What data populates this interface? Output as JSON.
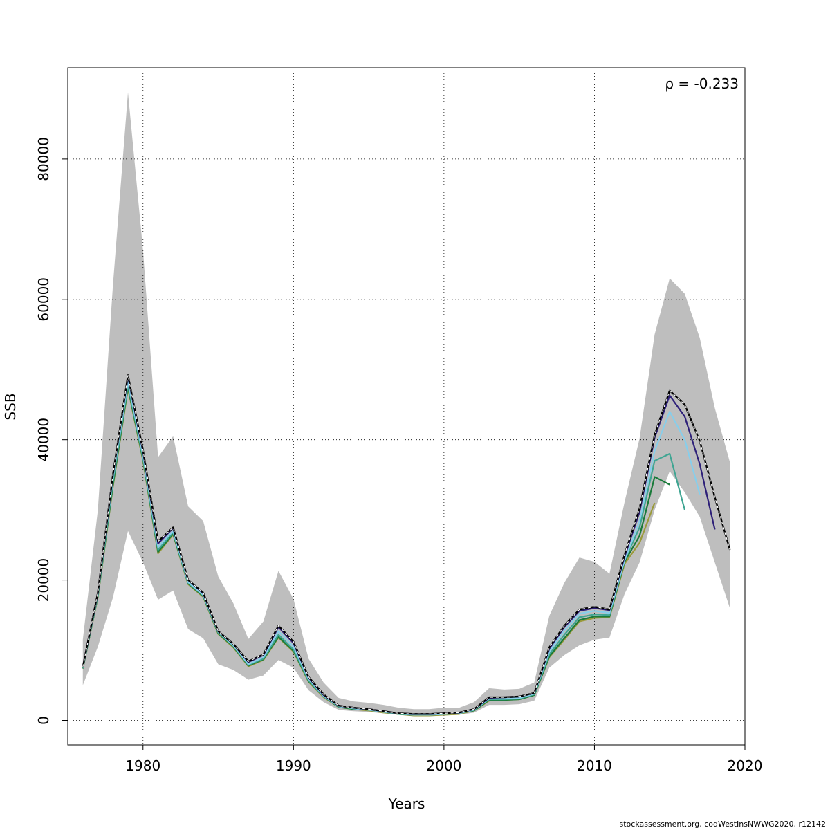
{
  "chart_data": {
    "type": "line",
    "xlabel": "Years",
    "ylabel": "SSB",
    "xlim": [
      1975,
      2020
    ],
    "ylim": [
      -3500,
      93000
    ],
    "xticks": [
      1980,
      1990,
      2000,
      2010,
      2020
    ],
    "yticks": [
      0,
      20000,
      40000,
      60000,
      80000
    ],
    "grid": true,
    "annotation": "ρ = -0.233",
    "confidence_band": {
      "x": [
        1976,
        1977,
        1978,
        1979,
        1980,
        1981,
        1982,
        1983,
        1984,
        1985,
        1986,
        1987,
        1988,
        1989,
        1990,
        1991,
        1992,
        1993,
        1994,
        1995,
        1996,
        1997,
        1998,
        1999,
        2000,
        2001,
        2002,
        2003,
        2004,
        2005,
        2006,
        2007,
        2008,
        2009,
        2010,
        2011,
        2012,
        2013,
        2014,
        2015,
        2016,
        2017,
        2018,
        2019
      ],
      "lower": [
        5000,
        10500,
        17500,
        27000,
        22500,
        17200,
        18500,
        13000,
        11700,
        8000,
        7200,
        5800,
        6400,
        8600,
        7500,
        4300,
        2600,
        1500,
        1300,
        1200,
        1000,
        800,
        600,
        600,
        700,
        800,
        1100,
        2200,
        2200,
        2300,
        2800,
        7500,
        9300,
        10700,
        11500,
        11800,
        18000,
        22500,
        30000,
        35500,
        32500,
        29000,
        22500,
        16000
      ],
      "upper": [
        11500,
        30000,
        62000,
        89500,
        67000,
        37500,
        40500,
        30500,
        28400,
        20500,
        16700,
        11600,
        14100,
        21300,
        17300,
        8800,
        5400,
        3200,
        2700,
        2500,
        2200,
        1800,
        1600,
        1600,
        1800,
        1800,
        2600,
        4600,
        4400,
        4500,
        5400,
        14900,
        19600,
        23200,
        22600,
        20900,
        31100,
        40200,
        55000,
        63000,
        60800,
        54500,
        44500,
        36800
      ]
    },
    "series": [
      {
        "x": [
          1976,
          1977,
          1978,
          1979,
          1980,
          1981,
          1982,
          1983,
          1984,
          1985,
          1986,
          1987,
          1988,
          1989,
          1990,
          1991,
          1992,
          1993,
          1994,
          1995,
          1996,
          1997,
          1998,
          1999,
          2000,
          2001,
          2002,
          2003,
          2004,
          2005,
          2006,
          2007,
          2008,
          2009,
          2010,
          2011,
          2012,
          2013,
          2014,
          2015,
          2016,
          2017,
          2018,
          2019
        ],
        "values": [
          7600,
          18200,
          35000,
          49200,
          38500,
          25500,
          27500,
          20000,
          18200,
          12700,
          10900,
          8400,
          9400,
          13500,
          11200,
          6200,
          3700,
          2100,
          1800,
          1600,
          1300,
          1000,
          900,
          900,
          1000,
          1100,
          1600,
          3300,
          3300,
          3400,
          3900,
          10400,
          13500,
          15800,
          16200,
          15800,
          23600,
          30200,
          40700,
          47000,
          45000,
          39800,
          31800,
          24300
        ],
        "color": "#000000",
        "dash": true
      },
      {
        "x": [
          1976,
          1977,
          1978,
          1979,
          1980,
          1981,
          1982,
          1983,
          1984,
          1985,
          1986,
          1987,
          1988,
          1989,
          1990,
          1991,
          1992,
          1993,
          1994,
          1995,
          1996,
          1997,
          1998,
          1999,
          2000,
          2001,
          2002,
          2003,
          2004,
          2005,
          2006,
          2007,
          2008,
          2009,
          2010,
          2011,
          2012,
          2013,
          2014,
          2015,
          2016,
          2017,
          2018
        ],
        "values": [
          7600,
          18200,
          35000,
          49000,
          38300,
          25200,
          27400,
          20000,
          18100,
          12700,
          10900,
          8300,
          9300,
          13300,
          11000,
          6100,
          3600,
          2100,
          1800,
          1600,
          1300,
          1000,
          900,
          900,
          1000,
          1100,
          1600,
          3200,
          3300,
          3400,
          3900,
          10200,
          13300,
          15600,
          16000,
          15700,
          23300,
          29700,
          40300,
          46300,
          43300,
          36500,
          27200
        ],
        "color": "#2d1f78"
      },
      {
        "x": [
          1976,
          1977,
          1978,
          1979,
          1980,
          1981,
          1982,
          1983,
          1984,
          1985,
          1986,
          1987,
          1988,
          1989,
          1990,
          1991,
          1992,
          1993,
          1994,
          1995,
          1996,
          1997,
          1998,
          1999,
          2000,
          2001,
          2002,
          2003,
          2004,
          2005,
          2006,
          2007,
          2008,
          2009,
          2010,
          2011,
          2012,
          2013,
          2014,
          2015,
          2016,
          2017
        ],
        "values": [
          7500,
          18000,
          34500,
          48300,
          37800,
          24700,
          27000,
          19700,
          17900,
          12600,
          10700,
          8000,
          9000,
          12700,
          10500,
          5900,
          3500,
          2000,
          1700,
          1500,
          1200,
          1000,
          800,
          800,
          900,
          1000,
          1500,
          3100,
          3100,
          3200,
          3800,
          9800,
          12800,
          15200,
          15600,
          15300,
          22800,
          28400,
          38400,
          44000,
          40000,
          32200
        ],
        "color": "#87ceeb"
      },
      {
        "x": [
          1976,
          1977,
          1978,
          1979,
          1980,
          1981,
          1982,
          1983,
          1984,
          1985,
          1986,
          1987,
          1988,
          1989,
          1990,
          1991,
          1992,
          1993,
          1994,
          1995,
          1996,
          1997,
          1998,
          1999,
          2000,
          2001,
          2002,
          2003,
          2004,
          2005,
          2006,
          2007,
          2008,
          2009,
          2010,
          2011,
          2012,
          2013,
          2014,
          2015,
          2016
        ],
        "values": [
          7500,
          17800,
          34000,
          47800,
          37400,
          24300,
          26800,
          19600,
          17800,
          12500,
          10600,
          7900,
          8800,
          12200,
          10100,
          5700,
          3400,
          2000,
          1700,
          1500,
          1200,
          900,
          800,
          800,
          900,
          1000,
          1500,
          3000,
          3000,
          3100,
          3700,
          9400,
          12200,
          14700,
          15100,
          15000,
          22800,
          27500,
          37000,
          38000,
          30000
        ],
        "color": "#3fa592"
      },
      {
        "x": [
          1976,
          1977,
          1978,
          1979,
          1980,
          1981,
          1982,
          1983,
          1984,
          1985,
          1986,
          1987,
          1988,
          1989,
          1990,
          1991,
          1992,
          1993,
          1994,
          1995,
          1996,
          1997,
          1998,
          1999,
          2000,
          2001,
          2002,
          2003,
          2004,
          2005,
          2006,
          2007,
          2008,
          2009,
          2010,
          2011,
          2012,
          2013,
          2014,
          2015
        ],
        "values": [
          7400,
          17700,
          33500,
          47500,
          37200,
          24000,
          26600,
          19500,
          17700,
          12400,
          10500,
          7800,
          8700,
          11900,
          9900,
          5600,
          3400,
          1900,
          1600,
          1500,
          1200,
          900,
          800,
          800,
          900,
          1000,
          1400,
          2900,
          2900,
          3000,
          3600,
          9100,
          11700,
          14300,
          14800,
          14800,
          22600,
          26300,
          34700,
          33600
        ],
        "color": "#1a7a3a"
      },
      {
        "x": [
          1976,
          1977,
          1978,
          1979,
          1980,
          1981,
          1982,
          1983,
          1984,
          1985,
          1986,
          1987,
          1988,
          1989,
          1990,
          1991,
          1992,
          1993,
          1994,
          1995,
          1996,
          1997,
          1998,
          1999,
          2000,
          2001,
          2002,
          2003,
          2004,
          2005,
          2006,
          2007,
          2008,
          2009,
          2010,
          2011,
          2012,
          2013,
          2014
        ],
        "values": [
          7400,
          17600,
          33300,
          47300,
          37000,
          23800,
          26500,
          19400,
          17600,
          12300,
          10400,
          7700,
          8600,
          11800,
          9800,
          5500,
          3300,
          1900,
          1600,
          1400,
          1100,
          900,
          700,
          700,
          800,
          900,
          1400,
          2800,
          2900,
          3000,
          3600,
          9000,
          11500,
          14100,
          14600,
          14700,
          22300,
          25300,
          31000
        ],
        "color": "#9a9a3a"
      }
    ]
  },
  "credit": "stockassessment.org, codWestInsNWWG2020, r12142"
}
